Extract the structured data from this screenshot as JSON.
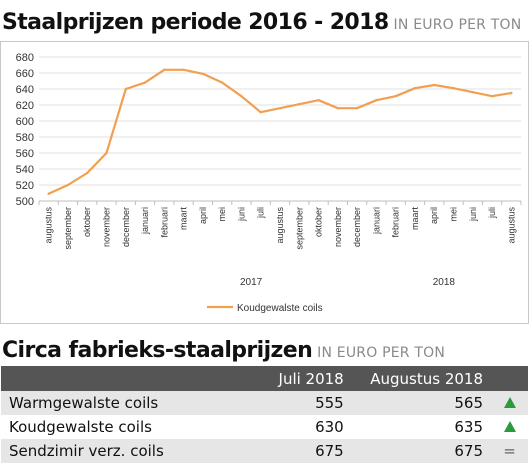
{
  "heading1": {
    "title": "Staalprijzen periode 2016 - 2018",
    "unit": "IN EURO PER TON"
  },
  "chart_data": {
    "type": "line",
    "title": "Staalprijzen periode 2016 - 2018",
    "unit": "IN EURO PER TON",
    "categories": [
      "augustus",
      "september",
      "oktober",
      "november",
      "december",
      "januari",
      "februari",
      "maart",
      "april",
      "mei",
      "juni",
      "juli",
      "augustus",
      "september",
      "oktober",
      "november",
      "december",
      "januari",
      "februari",
      "maart",
      "april",
      "mei",
      "juni",
      "juli",
      "augustus"
    ],
    "year_groups": [
      {
        "label": "2017",
        "from": 5,
        "to": 16
      },
      {
        "label": "2018",
        "from": 17,
        "to": 24
      }
    ],
    "series": [
      {
        "name": "Koudgewalste coils",
        "color": "#f0a050",
        "values": [
          509,
          520,
          535,
          560,
          640,
          648,
          664,
          664,
          659,
          648,
          631,
          611,
          616,
          621,
          626,
          616,
          616,
          626,
          631,
          641,
          645,
          641,
          636,
          631,
          635
        ]
      }
    ],
    "ylim": [
      500,
      680
    ],
    "yticks": [
      500,
      520,
      540,
      560,
      580,
      600,
      620,
      640,
      660,
      680
    ],
    "grid": true,
    "legend_position": "bottom"
  },
  "heading2": {
    "title": "Circa fabrieks-staalprijzen",
    "unit": "IN EURO PER TON"
  },
  "table": {
    "headers": {
      "label": "",
      "july": "Juli 2018",
      "august": "Augustus 2018"
    },
    "rows": [
      {
        "label": "Warmgewalste coils",
        "july": "555",
        "august": "565",
        "trend": "up"
      },
      {
        "label": "Koudgewalste coils",
        "july": "630",
        "august": "635",
        "trend": "up"
      },
      {
        "label": "Sendzimir verz. coils",
        "july": "675",
        "august": "675",
        "trend": "equal",
        "trend_symbol": "="
      }
    ],
    "trend_up_color": "#2a9a3a"
  }
}
